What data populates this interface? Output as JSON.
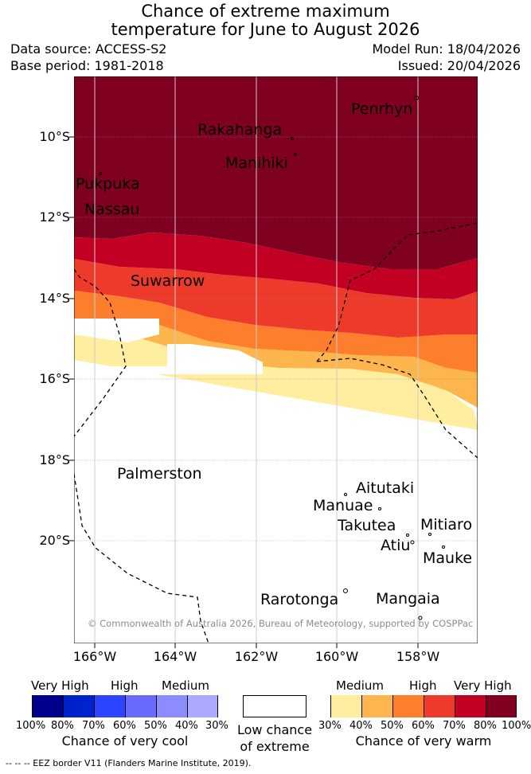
{
  "title": {
    "line1": "Chance of extreme maximum",
    "line2": "temperature for June to August 2026"
  },
  "info": {
    "data_source": "Data source: ACCESS-S2",
    "base_period": "Base period: 1981-2018",
    "model_run": "Model Run: 18/04/2026",
    "issued": "Issued: 20/04/2026"
  },
  "axes": {
    "lat_labels": [
      "10°S",
      "12°S",
      "14°S",
      "16°S",
      "18°S",
      "20°S"
    ],
    "lon_labels": [
      "166°W",
      "164°W",
      "162°W",
      "160°W",
      "158°W"
    ]
  },
  "islands": [
    "Penrhyn",
    "Rakahanga",
    "Manihiki",
    "Pukpuka",
    "Nassau",
    "Suwarrow",
    "Palmerston",
    "Aitutaki",
    "Manuae",
    "Takutea",
    "Mitiaro",
    "Atiu",
    "Mauke",
    "Rarotonga",
    "Mangaia"
  ],
  "copyright": "© Commonwealth of Australia 2026, Bureau of Meteorology, supported by COSPPac",
  "legend": {
    "cool_headers": [
      "Very High",
      "High",
      "Medium"
    ],
    "cool_colors": [
      "#00008c",
      "#0022cc",
      "#2a44ff",
      "#6a6aff",
      "#8c8cff",
      "#aaaaff"
    ],
    "cool_pcts": [
      "100%",
      "80%",
      "70%",
      "60%",
      "50%",
      "40%",
      "30%"
    ],
    "cool_caption": "Chance of very cool",
    "neutral_caption_1": "Low chance",
    "neutral_caption_2": "of extreme",
    "warm_headers": [
      "Medium",
      "High",
      "Very High"
    ],
    "warm_colors": [
      "#ffeda0",
      "#fdb54e",
      "#fd7f2e",
      "#ee3a2a",
      "#c20023",
      "#800020"
    ],
    "warm_pcts": [
      "30%",
      "40%",
      "50%",
      "60%",
      "70%",
      "80%",
      "100%"
    ],
    "warm_caption": "Chance of very warm"
  },
  "eez_note": "--  --  -- EEZ border V11 (Flanders Marine Institute, 2019)."
}
